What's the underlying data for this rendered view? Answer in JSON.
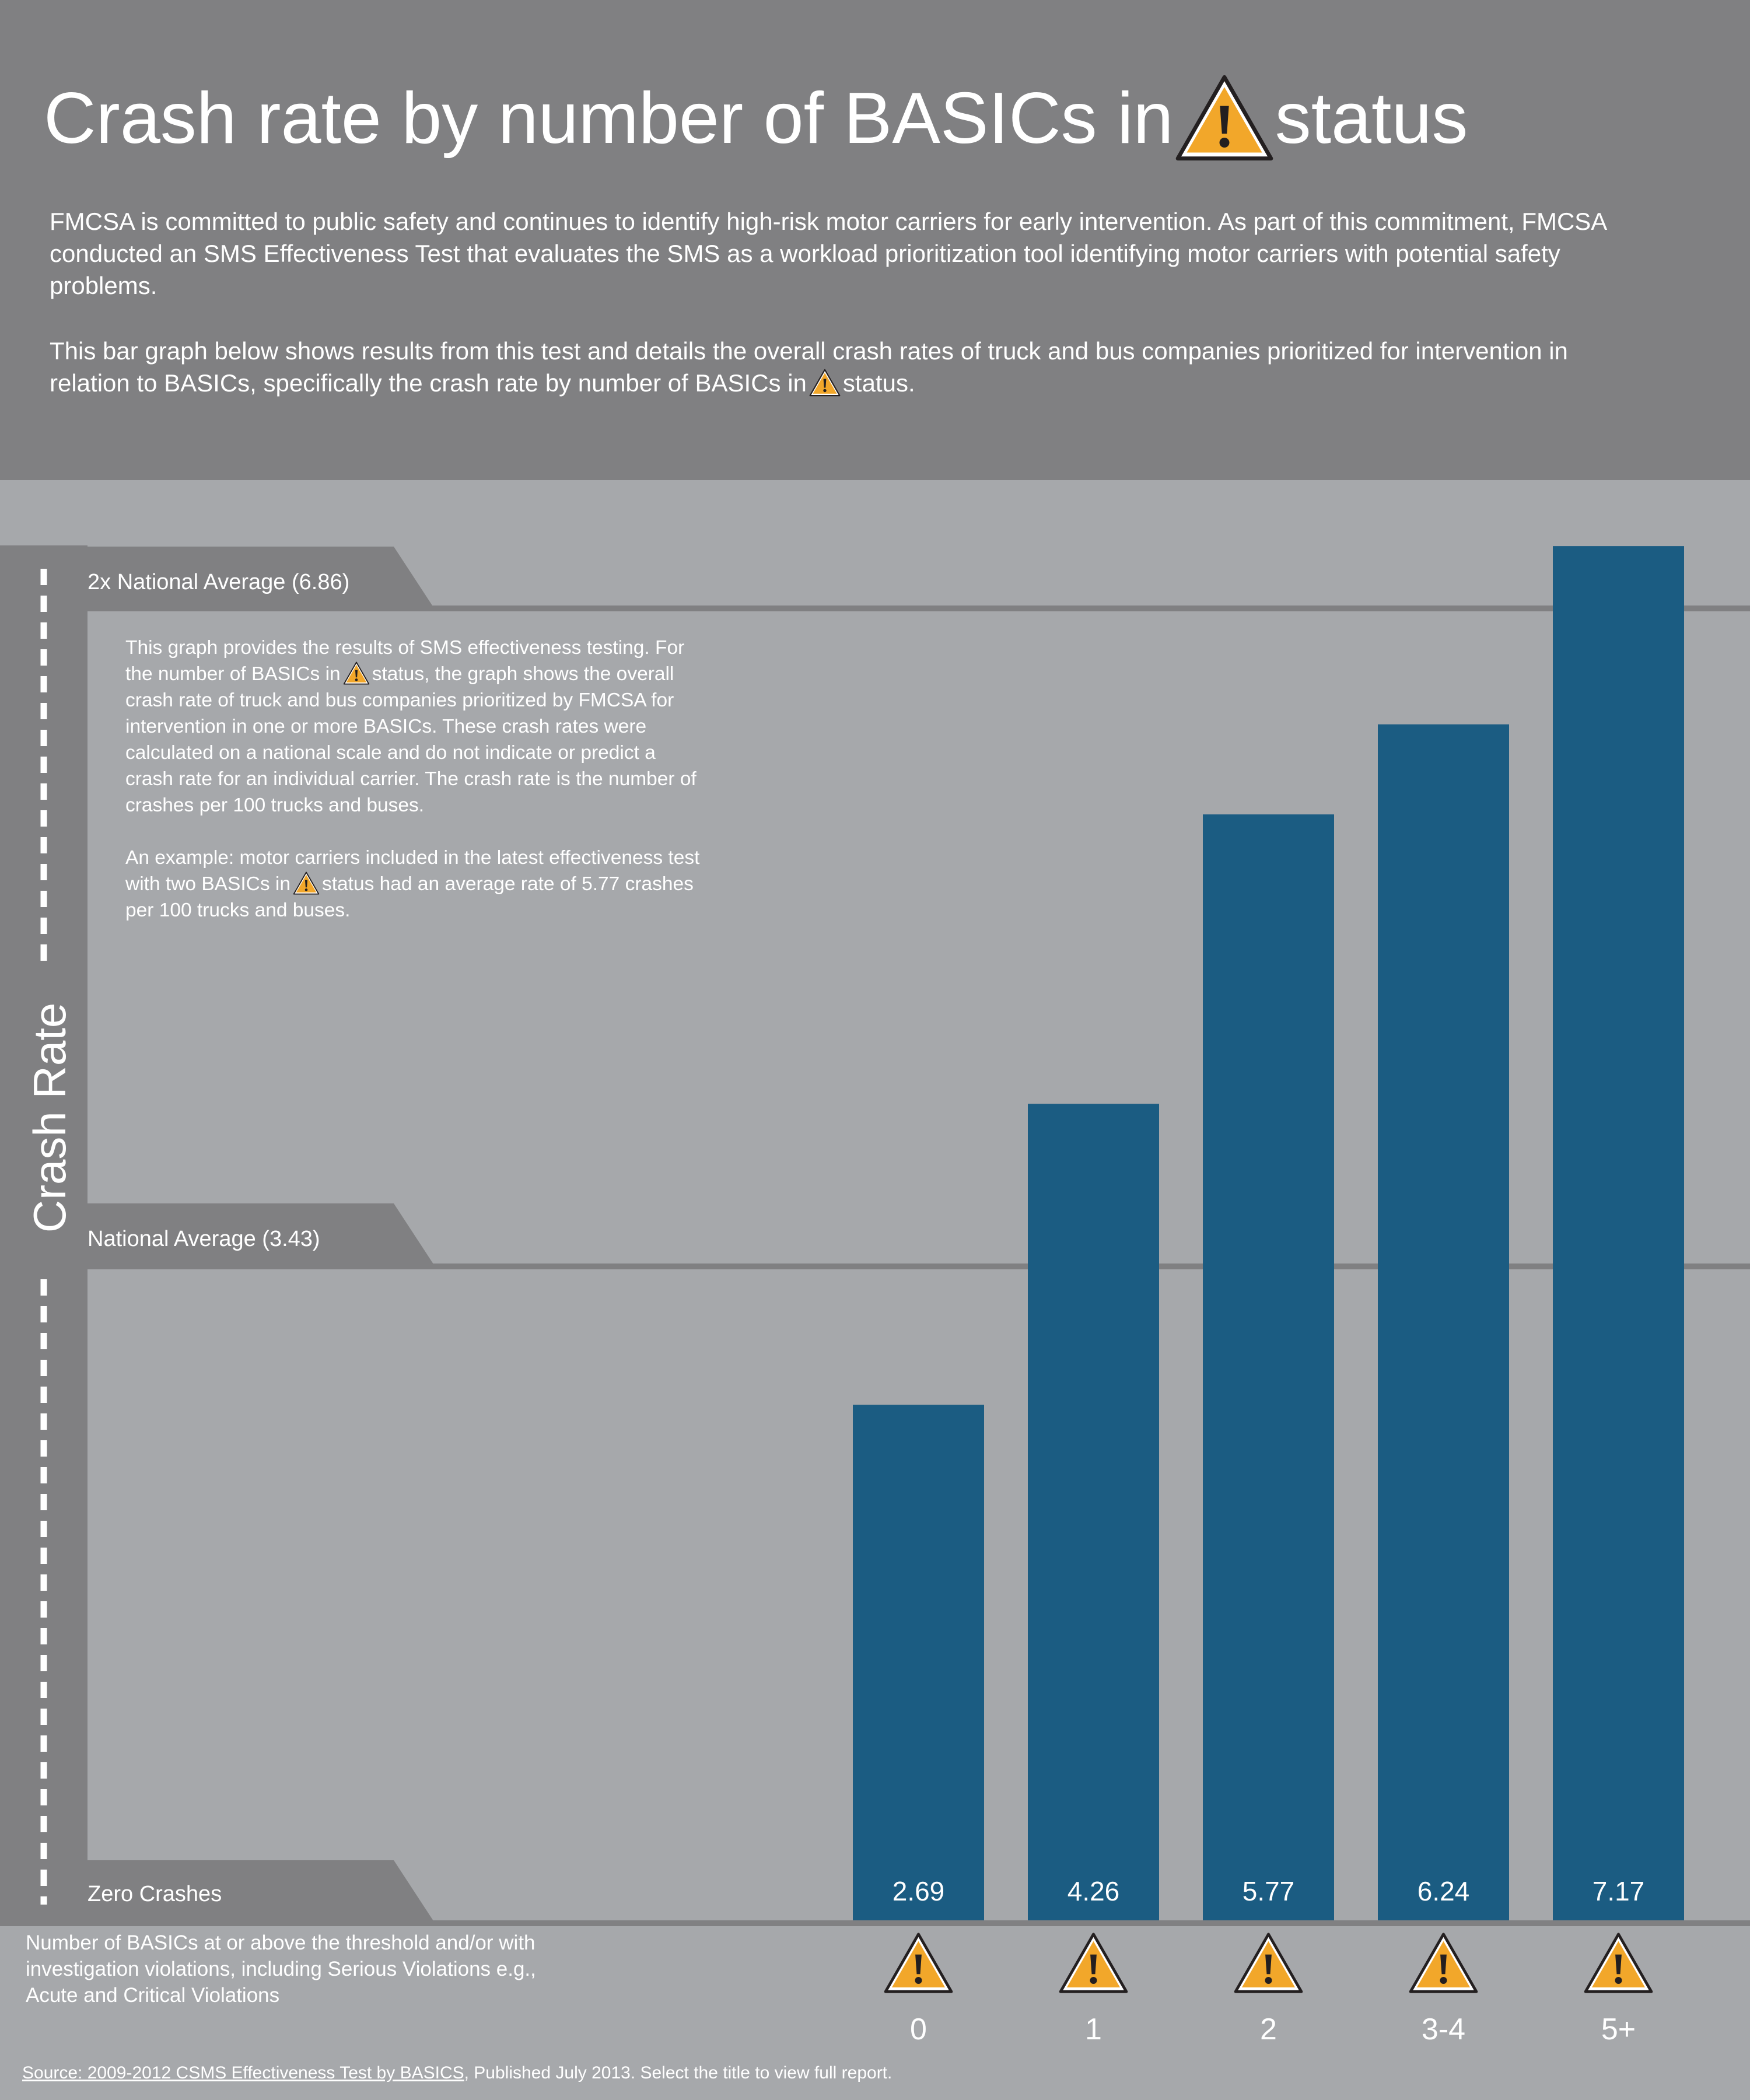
{
  "header": {
    "title_before_icon": "Crash rate by number of BASICs in",
    "title_after_icon": "status",
    "intro_p1": "FMCSA is committed to public safety and continues to identify high-risk motor carriers for early intervention. As part of this commitment, FMCSA conducted an SMS Effectiveness Test that evaluates the SMS as a workload prioritization tool identifying motor carriers with potential safety problems.",
    "intro_p2_before_icon": "This bar graph below shows results from this test and details the overall crash rates of truck and bus companies prioritized for intervention in relation to BASICs, specifically the crash rate by number of BASICs in",
    "intro_p2_after_icon": "status."
  },
  "chart_data": {
    "type": "bar",
    "ylabel": "Crash Rate",
    "categories": [
      "0",
      "1",
      "2",
      "3-4",
      "5+"
    ],
    "values": [
      2.69,
      4.26,
      5.77,
      6.24,
      7.17
    ],
    "value_labels": [
      "2.69",
      "4.26",
      "5.77",
      "6.24",
      "7.17"
    ],
    "reference_lines": [
      {
        "label": "Zero Crashes",
        "value": 0
      },
      {
        "label": "National Average (3.43)",
        "value": 3.43
      },
      {
        "label": "2x National Average (6.86)",
        "value": 6.86
      }
    ],
    "bar_color": "#1b5c82",
    "category_icon": "warning-triangle-icon",
    "xlabel": "Number of BASICs at or above the threshold and/or with investigation violations, including Serious Violations e.g., Acute and Critical Violations",
    "note_p1_before_icon": "This graph provides the results of SMS effectiveness testing. For the number of BASICs in",
    "note_p1_after_icon": "status, the graph shows the overall crash rate of truck and bus companies prioritized by FMCSA for intervention in one or more BASICs. These crash rates were calculated on a national scale and do not indicate or predict a crash rate for an individual carrier. The crash rate is the number of crashes per 100 trucks and buses.",
    "note_p2_before_icon": "An example: motor carriers included in the latest effectiveness test with two BASICs in",
    "note_p2_after_icon": "status had an average rate of 5.77 crashes per 100 trucks and buses."
  },
  "footer": {
    "source_link": "Source: 2009-2012 CSMS Effectiveness Test by BASICS",
    "source_rest": ", Published July 2013. Select the title to view full report."
  },
  "colors": {
    "header_bg": "#808082",
    "chart_bg": "#a6a8ab",
    "warning_fill": "#f2a72a",
    "warning_outline": "#231f20"
  }
}
